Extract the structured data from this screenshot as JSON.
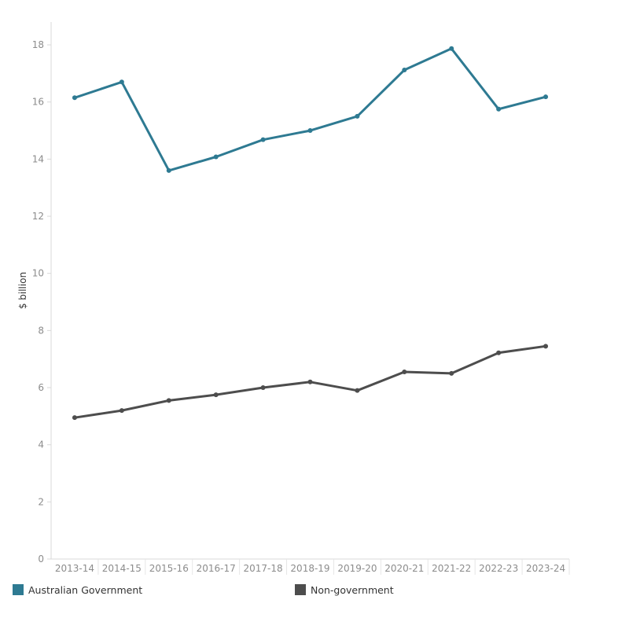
{
  "chart_data": {
    "type": "line",
    "title": "",
    "xlabel": "",
    "ylabel": "$ billion",
    "ylim": [
      0,
      18.8
    ],
    "yticks": [
      0,
      2,
      4,
      6,
      8,
      10,
      12,
      14,
      16,
      18
    ],
    "grid": false,
    "legend_position": "bottom",
    "categories": [
      "2013-14",
      "2014-15",
      "2015-16",
      "2016-17",
      "2017-18",
      "2018-19",
      "2019-20",
      "2020-21",
      "2021-22",
      "2022-23",
      "2023-24"
    ],
    "series": [
      {
        "name": "Australian Government",
        "color": "#2E7A92",
        "values": [
          16.15,
          16.7,
          13.6,
          14.08,
          14.68,
          15.0,
          15.5,
          17.12,
          17.87,
          15.75,
          16.18
        ]
      },
      {
        "name": "Non-government",
        "color": "#4D4D4D",
        "values": [
          4.95,
          5.2,
          5.55,
          5.75,
          6.0,
          6.2,
          5.9,
          6.55,
          6.5,
          7.22,
          7.45
        ]
      }
    ]
  }
}
